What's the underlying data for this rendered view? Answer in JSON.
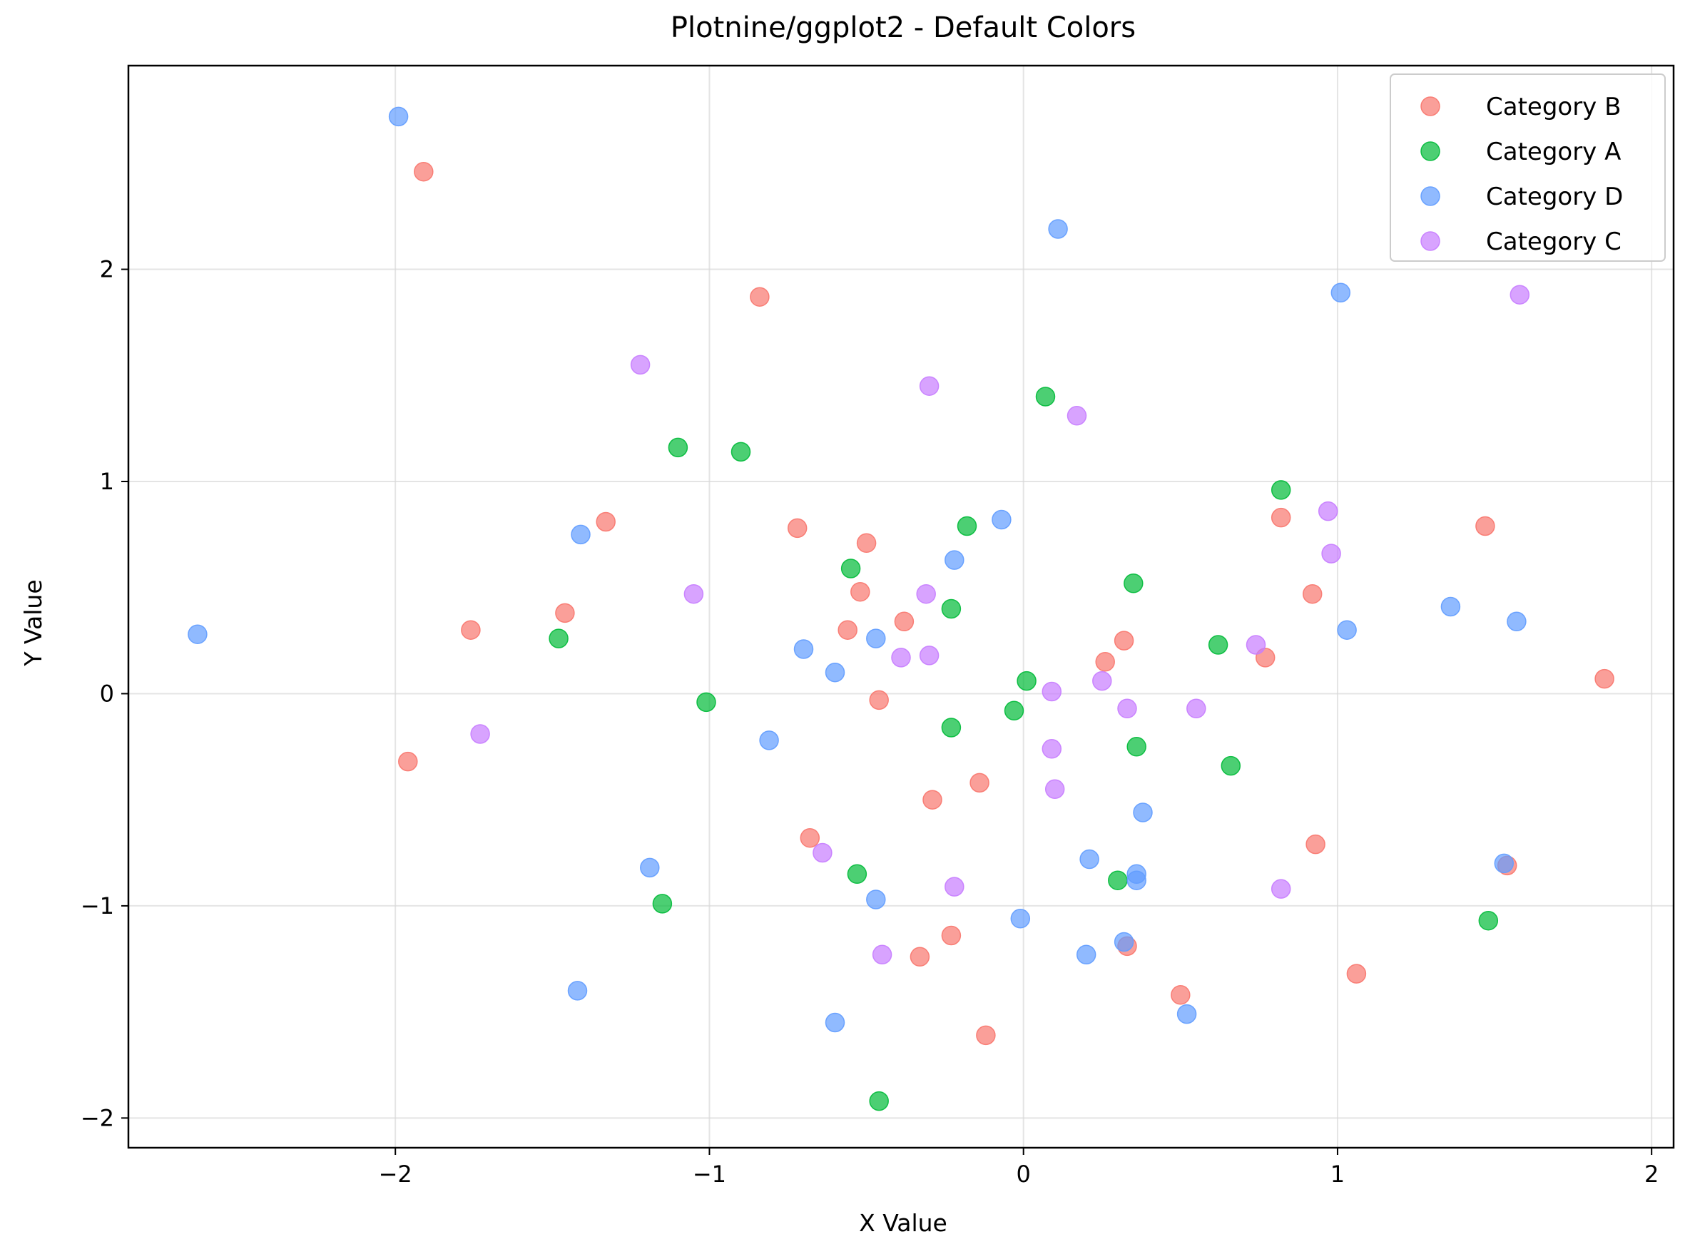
{
  "chart_data": {
    "type": "scatter",
    "title": "Plotnine/ggplot2 - Default Colors",
    "xlabel": "X Value",
    "ylabel": "Y Value",
    "xlim": [
      -2.85,
      2.07
    ],
    "ylim": [
      -2.14,
      2.96
    ],
    "xticks": [
      -2,
      -1,
      0,
      1,
      2
    ],
    "yticks": [
      -2,
      -1,
      0,
      1,
      2
    ],
    "xtick_labels": [
      "−2",
      "−1",
      "0",
      "1",
      "2"
    ],
    "ytick_labels": [
      "−2",
      "−1",
      "0",
      "1",
      "2"
    ],
    "grid": true,
    "legend_position": "top-right",
    "series": [
      {
        "name": "Category B",
        "color": "#F8766D",
        "points": [
          [
            -1.91,
            2.46
          ],
          [
            -0.84,
            1.87
          ],
          [
            -1.33,
            0.81
          ],
          [
            -0.72,
            0.78
          ],
          [
            -0.5,
            0.71
          ],
          [
            -0.52,
            0.48
          ],
          [
            -1.46,
            0.38
          ],
          [
            -1.76,
            0.3
          ],
          [
            -0.56,
            0.3
          ],
          [
            -0.38,
            0.34
          ],
          [
            -0.46,
            -0.03
          ],
          [
            -1.96,
            -0.32
          ],
          [
            -0.14,
            -0.42
          ],
          [
            -0.29,
            -0.5
          ],
          [
            -0.68,
            -0.68
          ],
          [
            -0.23,
            -1.14
          ],
          [
            -0.33,
            -1.24
          ],
          [
            -0.12,
            -1.61
          ],
          [
            0.26,
            0.15
          ],
          [
            0.32,
            0.25
          ],
          [
            0.33,
            -1.19
          ],
          [
            0.5,
            -1.42
          ],
          [
            0.77,
            0.17
          ],
          [
            0.82,
            0.83
          ],
          [
            0.92,
            0.47
          ],
          [
            0.93,
            -0.71
          ],
          [
            1.06,
            -1.32
          ],
          [
            1.47,
            0.79
          ],
          [
            1.54,
            -0.81
          ],
          [
            1.85,
            0.07
          ]
        ]
      },
      {
        "name": "Category A",
        "color": "#00BA38",
        "points": [
          [
            -1.1,
            1.16
          ],
          [
            -0.9,
            1.14
          ],
          [
            -1.48,
            0.26
          ],
          [
            -1.01,
            -0.04
          ],
          [
            -1.15,
            -0.99
          ],
          [
            -0.55,
            0.59
          ],
          [
            -0.18,
            0.79
          ],
          [
            -0.23,
            0.4
          ],
          [
            -0.23,
            -0.16
          ],
          [
            -0.53,
            -0.85
          ],
          [
            -0.46,
            -1.92
          ],
          [
            0.07,
            1.4
          ],
          [
            0.01,
            0.06
          ],
          [
            -0.03,
            -0.08
          ],
          [
            0.35,
            0.52
          ],
          [
            0.36,
            -0.25
          ],
          [
            0.3,
            -0.88
          ],
          [
            0.62,
            0.23
          ],
          [
            0.66,
            -0.34
          ],
          [
            0.82,
            0.96
          ],
          [
            1.48,
            -1.07
          ]
        ]
      },
      {
        "name": "Category D",
        "color": "#619CFF",
        "points": [
          [
            -1.99,
            2.72
          ],
          [
            -2.63,
            0.28
          ],
          [
            -1.41,
            0.75
          ],
          [
            -0.7,
            0.21
          ],
          [
            -0.6,
            0.1
          ],
          [
            -0.81,
            -0.22
          ],
          [
            -1.19,
            -0.82
          ],
          [
            -1.42,
            -1.4
          ],
          [
            -0.6,
            -1.55
          ],
          [
            -0.47,
            0.26
          ],
          [
            -0.22,
            0.63
          ],
          [
            -0.07,
            0.82
          ],
          [
            -0.47,
            -0.97
          ],
          [
            0.11,
            2.19
          ],
          [
            1.01,
            1.89
          ],
          [
            1.03,
            0.3
          ],
          [
            1.36,
            0.41
          ],
          [
            1.57,
            0.34
          ],
          [
            0.38,
            -0.56
          ],
          [
            0.21,
            -0.78
          ],
          [
            0.36,
            -0.85
          ],
          [
            0.36,
            -0.88
          ],
          [
            -0.01,
            -1.06
          ],
          [
            0.2,
            -1.23
          ],
          [
            0.32,
            -1.17
          ],
          [
            0.52,
            -1.51
          ],
          [
            1.53,
            -0.8
          ]
        ]
      },
      {
        "name": "Category C",
        "color": "#C77CFF",
        "points": [
          [
            -1.22,
            1.55
          ],
          [
            -1.05,
            0.47
          ],
          [
            -1.73,
            -0.19
          ],
          [
            -0.3,
            1.45
          ],
          [
            -0.31,
            0.47
          ],
          [
            -0.39,
            0.17
          ],
          [
            -0.3,
            0.18
          ],
          [
            -0.64,
            -0.75
          ],
          [
            -0.22,
            -0.91
          ],
          [
            -0.45,
            -1.23
          ],
          [
            0.17,
            1.31
          ],
          [
            0.09,
            0.01
          ],
          [
            0.25,
            0.06
          ],
          [
            0.33,
            -0.07
          ],
          [
            0.09,
            -0.26
          ],
          [
            0.1,
            -0.45
          ],
          [
            0.55,
            -0.07
          ],
          [
            0.74,
            0.23
          ],
          [
            0.97,
            0.86
          ],
          [
            0.98,
            0.66
          ],
          [
            1.58,
            1.88
          ],
          [
            0.82,
            -0.92
          ]
        ]
      }
    ]
  }
}
